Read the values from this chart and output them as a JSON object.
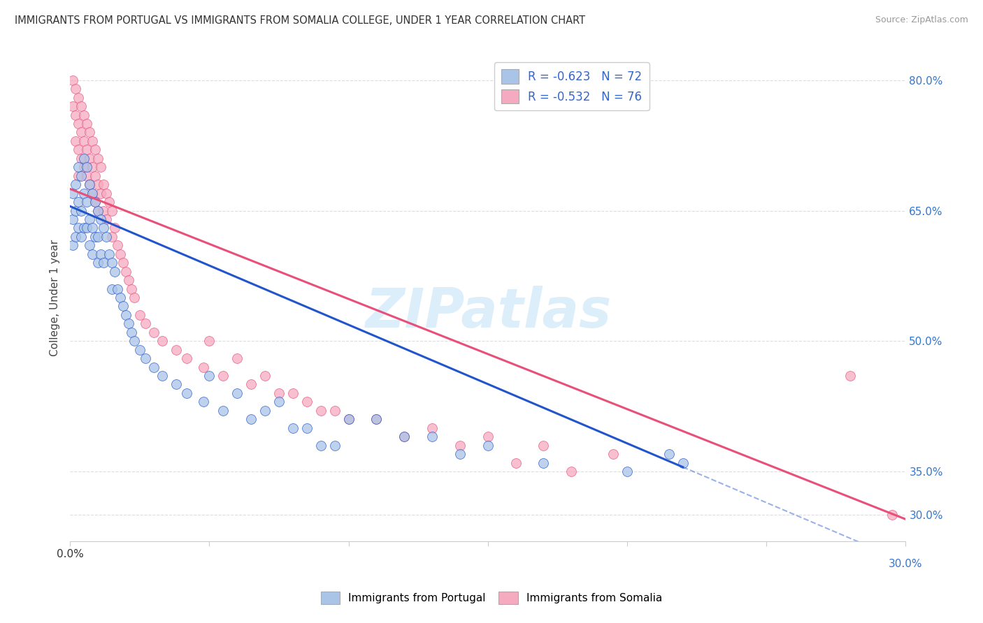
{
  "title": "IMMIGRANTS FROM PORTUGAL VS IMMIGRANTS FROM SOMALIA COLLEGE, UNDER 1 YEAR CORRELATION CHART",
  "source": "Source: ZipAtlas.com",
  "ylabel": "College, Under 1 year",
  "xlim": [
    0.0,
    0.3
  ],
  "ylim": [
    0.27,
    0.83
  ],
  "x_ticks": [
    0.0,
    0.05,
    0.1,
    0.15,
    0.2,
    0.25,
    0.3
  ],
  "y_ticks_right": [
    0.3,
    0.35,
    0.5,
    0.65,
    0.8
  ],
  "y_tick_right_labels": [
    "30.0%",
    "35.0%",
    "50.0%",
    "65.0%",
    "80.0%"
  ],
  "portugal_R": -0.623,
  "portugal_N": 72,
  "somalia_R": -0.532,
  "somalia_N": 76,
  "portugal_color": "#aac4e8",
  "somalia_color": "#f5aabf",
  "portugal_line_color": "#2255cc",
  "somalia_line_color": "#e8507a",
  "watermark": "ZIPatlas",
  "watermark_color": "#dceefa",
  "background_color": "#ffffff",
  "grid_color": "#dddddd",
  "legend_label_portugal": "Immigrants from Portugal",
  "legend_label_somalia": "Immigrants from Somalia",
  "port_line_x0": 0.0,
  "port_line_y0": 0.655,
  "port_line_x1": 0.22,
  "port_line_y1": 0.355,
  "port_line_xdash_end": 0.3,
  "som_line_x0": 0.0,
  "som_line_y0": 0.675,
  "som_line_x1": 0.3,
  "som_line_y1": 0.295,
  "portugal_scatter_x": [
    0.001,
    0.001,
    0.001,
    0.002,
    0.002,
    0.002,
    0.003,
    0.003,
    0.003,
    0.004,
    0.004,
    0.004,
    0.005,
    0.005,
    0.005,
    0.006,
    0.006,
    0.006,
    0.007,
    0.007,
    0.007,
    0.008,
    0.008,
    0.008,
    0.009,
    0.009,
    0.01,
    0.01,
    0.01,
    0.011,
    0.011,
    0.012,
    0.012,
    0.013,
    0.014,
    0.015,
    0.015,
    0.016,
    0.017,
    0.018,
    0.019,
    0.02,
    0.021,
    0.022,
    0.023,
    0.025,
    0.027,
    0.03,
    0.033,
    0.038,
    0.042,
    0.048,
    0.055,
    0.065,
    0.075,
    0.085,
    0.095,
    0.11,
    0.13,
    0.15,
    0.17,
    0.2,
    0.215,
    0.22,
    0.05,
    0.06,
    0.07,
    0.08,
    0.09,
    0.1,
    0.12,
    0.14
  ],
  "portugal_scatter_y": [
    0.67,
    0.64,
    0.61,
    0.68,
    0.65,
    0.62,
    0.7,
    0.66,
    0.63,
    0.69,
    0.65,
    0.62,
    0.71,
    0.67,
    0.63,
    0.7,
    0.66,
    0.63,
    0.68,
    0.64,
    0.61,
    0.67,
    0.63,
    0.6,
    0.66,
    0.62,
    0.65,
    0.62,
    0.59,
    0.64,
    0.6,
    0.63,
    0.59,
    0.62,
    0.6,
    0.59,
    0.56,
    0.58,
    0.56,
    0.55,
    0.54,
    0.53,
    0.52,
    0.51,
    0.5,
    0.49,
    0.48,
    0.47,
    0.46,
    0.45,
    0.44,
    0.43,
    0.42,
    0.41,
    0.43,
    0.4,
    0.38,
    0.41,
    0.39,
    0.38,
    0.36,
    0.35,
    0.37,
    0.36,
    0.46,
    0.44,
    0.42,
    0.4,
    0.38,
    0.41,
    0.39,
    0.37
  ],
  "somalia_scatter_x": [
    0.001,
    0.001,
    0.002,
    0.002,
    0.002,
    0.003,
    0.003,
    0.003,
    0.003,
    0.004,
    0.004,
    0.004,
    0.005,
    0.005,
    0.005,
    0.006,
    0.006,
    0.006,
    0.007,
    0.007,
    0.007,
    0.008,
    0.008,
    0.008,
    0.009,
    0.009,
    0.009,
    0.01,
    0.01,
    0.01,
    0.011,
    0.011,
    0.012,
    0.012,
    0.013,
    0.013,
    0.014,
    0.015,
    0.015,
    0.016,
    0.017,
    0.018,
    0.019,
    0.02,
    0.021,
    0.022,
    0.023,
    0.025,
    0.027,
    0.03,
    0.033,
    0.038,
    0.042,
    0.048,
    0.055,
    0.065,
    0.075,
    0.085,
    0.095,
    0.11,
    0.13,
    0.15,
    0.17,
    0.195,
    0.05,
    0.06,
    0.07,
    0.08,
    0.09,
    0.1,
    0.12,
    0.14,
    0.16,
    0.18,
    0.28,
    0.295
  ],
  "somalia_scatter_y": [
    0.8,
    0.77,
    0.79,
    0.76,
    0.73,
    0.78,
    0.75,
    0.72,
    0.69,
    0.77,
    0.74,
    0.71,
    0.76,
    0.73,
    0.7,
    0.75,
    0.72,
    0.69,
    0.74,
    0.71,
    0.68,
    0.73,
    0.7,
    0.67,
    0.72,
    0.69,
    0.66,
    0.71,
    0.68,
    0.65,
    0.7,
    0.67,
    0.68,
    0.65,
    0.67,
    0.64,
    0.66,
    0.65,
    0.62,
    0.63,
    0.61,
    0.6,
    0.59,
    0.58,
    0.57,
    0.56,
    0.55,
    0.53,
    0.52,
    0.51,
    0.5,
    0.49,
    0.48,
    0.47,
    0.46,
    0.45,
    0.44,
    0.43,
    0.42,
    0.41,
    0.4,
    0.39,
    0.38,
    0.37,
    0.5,
    0.48,
    0.46,
    0.44,
    0.42,
    0.41,
    0.39,
    0.38,
    0.36,
    0.35,
    0.46,
    0.3
  ]
}
